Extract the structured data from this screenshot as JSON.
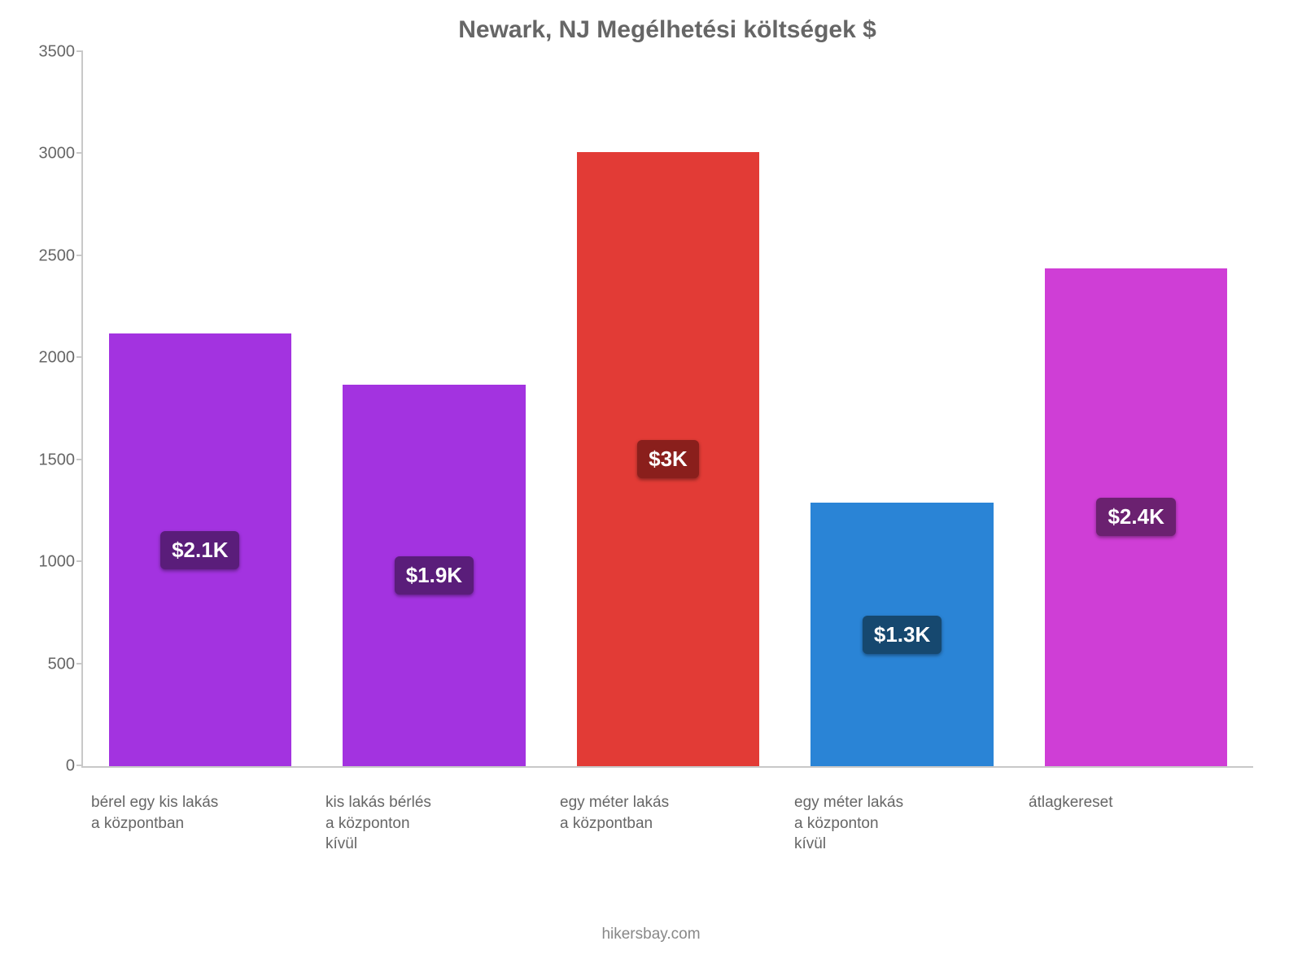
{
  "chart": {
    "type": "bar",
    "title": "Newark, NJ Megélhetési költségek $",
    "title_fontsize": 30,
    "title_color": "#666666",
    "background_color": "#ffffff",
    "axis_color": "#c8c8c8",
    "ylim": [
      0,
      3500
    ],
    "ytick_step": 500,
    "yticks": [
      "0",
      "500",
      "1000",
      "1500",
      "2000",
      "2500",
      "3000",
      "3500"
    ],
    "ytick_fontsize": 20,
    "ytick_color": "#666666",
    "xlabel_fontsize": 19,
    "xlabel_color": "#666666",
    "bar_width_ratio": 0.78,
    "badge_fontsize": 26,
    "attribution": "hikersbay.com",
    "attribution_fontsize": 19,
    "attribution_color": "#888888",
    "bars": [
      {
        "label": "bérel egy kis lakás\na központban",
        "value": 2120,
        "bar_color": "#a333e0",
        "badge_text": "$2.1K",
        "badge_bg": "#5a1d7a"
      },
      {
        "label": "kis lakás bérlés\na központon\nkívül",
        "value": 1870,
        "bar_color": "#a333e0",
        "badge_text": "$1.9K",
        "badge_bg": "#5a1d7a"
      },
      {
        "label": "egy méter lakás\na központban",
        "value": 3010,
        "bar_color": "#e23b36",
        "badge_text": "$3K",
        "badge_bg": "#8a1f1c"
      },
      {
        "label": "egy méter lakás\na központon\nkívül",
        "value": 1290,
        "bar_color": "#2a84d6",
        "badge_text": "$1.3K",
        "badge_bg": "#16486f"
      },
      {
        "label": "átlagkereset",
        "value": 2440,
        "bar_color": "#cf3ed6",
        "badge_text": "$2.4K",
        "badge_bg": "#6b2170"
      }
    ]
  }
}
